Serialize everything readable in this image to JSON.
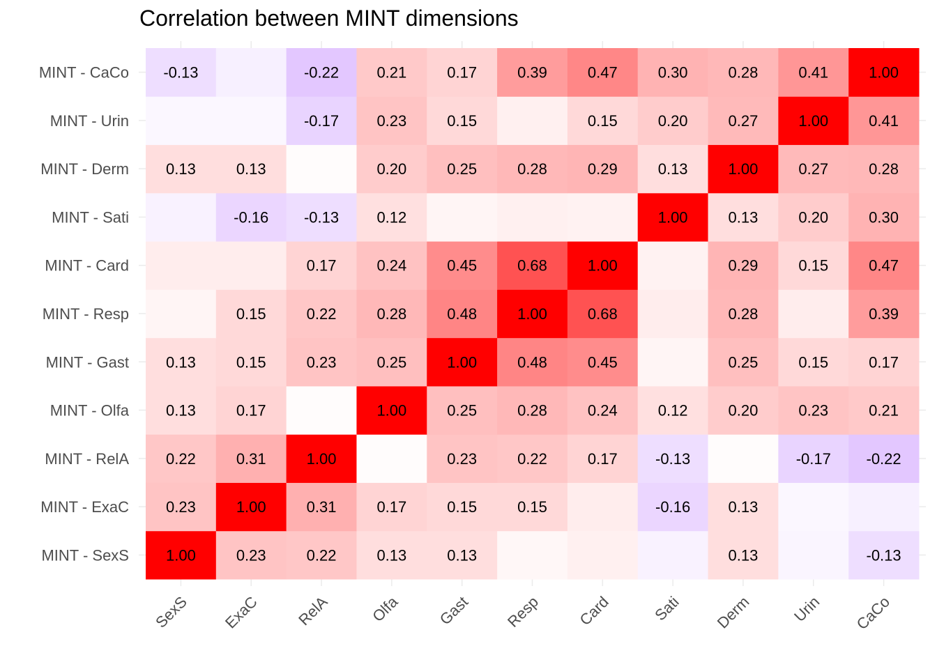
{
  "chart_data": {
    "type": "heatmap",
    "title": "Correlation between MINT dimensions",
    "x_categories": [
      "SexS",
      "ExaC",
      "RelA",
      "Olfa",
      "Gast",
      "Resp",
      "Card",
      "Sati",
      "Derm",
      "Urin",
      "CaCo"
    ],
    "y_categories": [
      "MINT - SexS",
      "MINT - ExaC",
      "MINT - RelA",
      "MINT - Olfa",
      "MINT - Gast",
      "MINT - Resp",
      "MINT - Card",
      "MINT - Sati",
      "MINT - Derm",
      "MINT - Urin",
      "MINT - CaCo"
    ],
    "values": [
      [
        1.0,
        0.23,
        0.22,
        0.13,
        0.13,
        0.03,
        0.06,
        -0.05,
        0.13,
        -0.04,
        -0.13
      ],
      [
        0.23,
        1.0,
        0.31,
        0.17,
        0.15,
        0.15,
        0.07,
        -0.16,
        0.13,
        -0.03,
        -0.06
      ],
      [
        0.22,
        0.31,
        1.0,
        0.01,
        0.23,
        0.22,
        0.17,
        -0.13,
        0.01,
        -0.17,
        -0.22
      ],
      [
        0.13,
        0.17,
        0.01,
        1.0,
        0.25,
        0.28,
        0.24,
        0.12,
        0.2,
        0.23,
        0.21
      ],
      [
        0.13,
        0.15,
        0.23,
        0.25,
        1.0,
        0.48,
        0.45,
        0.04,
        0.25,
        0.15,
        0.17
      ],
      [
        0.04,
        0.15,
        0.22,
        0.28,
        0.48,
        1.0,
        0.68,
        0.07,
        0.28,
        0.07,
        0.39
      ],
      [
        0.07,
        0.07,
        0.17,
        0.24,
        0.45,
        0.68,
        1.0,
        0.05,
        0.29,
        0.15,
        0.47
      ],
      [
        -0.05,
        -0.16,
        -0.13,
        0.12,
        0.04,
        0.06,
        0.05,
        1.0,
        0.13,
        0.2,
        0.3
      ],
      [
        0.13,
        0.13,
        0.01,
        0.2,
        0.25,
        0.28,
        0.29,
        0.13,
        1.0,
        0.27,
        0.28
      ],
      [
        -0.03,
        -0.03,
        -0.17,
        0.23,
        0.15,
        0.06,
        0.15,
        0.2,
        0.27,
        1.0,
        0.41
      ],
      [
        -0.13,
        -0.06,
        -0.22,
        0.21,
        0.17,
        0.39,
        0.47,
        0.3,
        0.28,
        0.41,
        1.0
      ]
    ],
    "value_labels": [
      [
        "1.00",
        "0.23",
        "0.22",
        "0.13",
        "0.13",
        "",
        "",
        "",
        "0.13",
        "",
        "-0.13"
      ],
      [
        "0.23",
        "1.00",
        "0.31",
        "0.17",
        "0.15",
        "0.15",
        "",
        "-0.16",
        "0.13",
        "",
        ""
      ],
      [
        "0.22",
        "0.31",
        "1.00",
        "",
        "0.23",
        "0.22",
        "0.17",
        "-0.13",
        "",
        "-0.17",
        "-0.22"
      ],
      [
        "0.13",
        "0.17",
        "",
        "1.00",
        "0.25",
        "0.28",
        "0.24",
        "0.12",
        "0.20",
        "0.23",
        "0.21"
      ],
      [
        "0.13",
        "0.15",
        "0.23",
        "0.25",
        "1.00",
        "0.48",
        "0.45",
        "",
        "0.25",
        "0.15",
        "0.17"
      ],
      [
        "",
        "0.15",
        "0.22",
        "0.28",
        "0.48",
        "1.00",
        "0.68",
        "",
        "0.28",
        "",
        "0.39"
      ],
      [
        "",
        "",
        "0.17",
        "0.24",
        "0.45",
        "0.68",
        "1.00",
        "",
        "0.29",
        "0.15",
        "0.47"
      ],
      [
        "",
        "-0.16",
        "-0.13",
        "0.12",
        "",
        "",
        "",
        "1.00",
        "0.13",
        "0.20",
        "0.30"
      ],
      [
        "0.13",
        "0.13",
        "",
        "0.20",
        "0.25",
        "0.28",
        "0.29",
        "0.13",
        "1.00",
        "0.27",
        "0.28"
      ],
      [
        "",
        "",
        "-0.17",
        "0.23",
        "0.15",
        "",
        "0.15",
        "0.20",
        "0.27",
        "1.00",
        "0.41"
      ],
      [
        "-0.13",
        "",
        "-0.22",
        "0.21",
        "0.17",
        "0.39",
        "0.47",
        "0.30",
        "0.28",
        "0.41",
        "1.00"
      ]
    ],
    "color_scale": {
      "low": "#8000ff",
      "mid": "#ffffff",
      "high": "#ff0000",
      "limits": [
        -1,
        1
      ]
    },
    "grid": true,
    "legend": "none"
  }
}
